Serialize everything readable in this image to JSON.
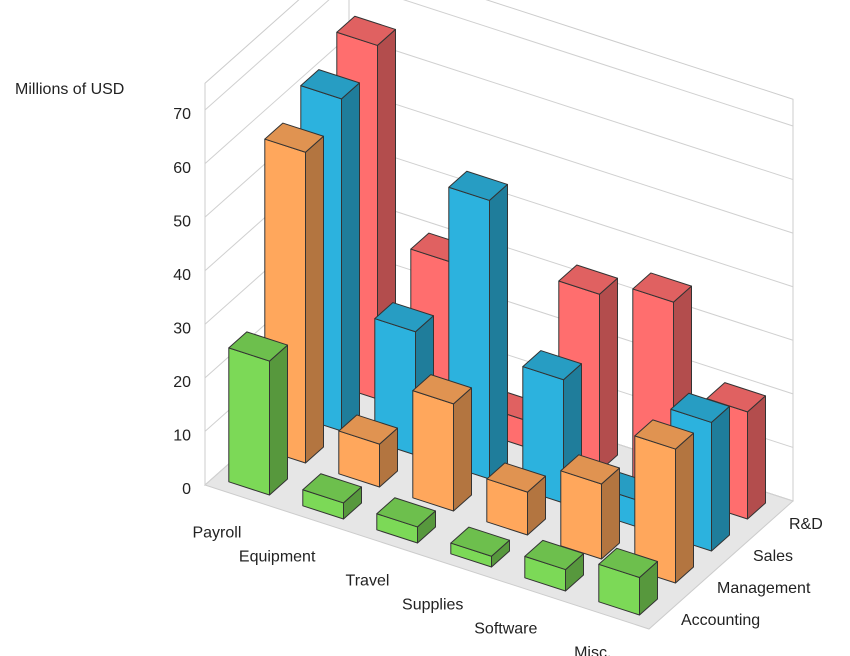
{
  "chart_data": {
    "type": "bar3d",
    "y_label": "Millions of USD",
    "categories": [
      "Payroll",
      "Equipment",
      "Travel",
      "Supplies",
      "Software",
      "Misc."
    ],
    "series": [
      {
        "name": "Accounting",
        "color": "#7cd957",
        "values": [
          25,
          3,
          3,
          2,
          4,
          7
        ]
      },
      {
        "name": "Management",
        "color": "#ffa75c",
        "values": [
          58,
          8,
          20,
          8,
          14,
          25
        ]
      },
      {
        "name": "Sales",
        "color": "#2cb2de",
        "values": [
          62,
          23,
          52,
          23,
          5,
          24
        ]
      },
      {
        "name": "R&D",
        "color": "#ff6e6e",
        "values": [
          66,
          30,
          5,
          33,
          36,
          20
        ]
      }
    ],
    "ylim": [
      0,
      75
    ],
    "yticks": [
      0,
      10,
      20,
      30,
      40,
      50,
      60,
      70
    ],
    "grid": true
  }
}
